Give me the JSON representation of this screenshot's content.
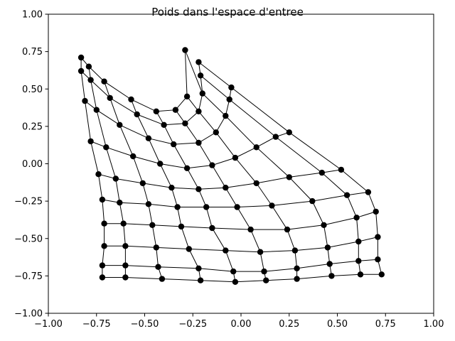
{
  "chart_data": {
    "type": "line",
    "title": "Poids dans l'espace d'entree",
    "xlabel": "",
    "ylabel": "",
    "xlim": [
      -1.0,
      1.0
    ],
    "ylim": [
      -1.0,
      1.0
    ],
    "xticks": [
      -1.0,
      -0.75,
      -0.5,
      -0.25,
      0.0,
      0.25,
      0.5,
      0.75,
      1.0
    ],
    "yticks": [
      -1.0,
      -0.75,
      -0.5,
      -0.25,
      0.0,
      0.25,
      0.5,
      0.75,
      1.0
    ],
    "xtick_labels": [
      "−1.00",
      "−0.75",
      "−0.50",
      "−0.25",
      "0.00",
      "0.25",
      "0.50",
      "0.75",
      "1.00"
    ],
    "ytick_labels": [
      "−1.00",
      "−0.75",
      "−0.50",
      "−0.25",
      "0.00",
      "0.25",
      "0.50",
      "0.75",
      "1.00"
    ],
    "grid": false,
    "legend": "none",
    "line_color": "#000000",
    "marker_color": "#000000",
    "grid_points": [
      [
        [
          -0.83,
          0.71
        ],
        [
          -0.79,
          0.65
        ],
        [
          -0.71,
          0.55
        ],
        [
          -0.57,
          0.43
        ],
        [
          -0.44,
          0.35
        ],
        [
          -0.34,
          0.36
        ],
        [
          -0.28,
          0.45
        ],
        [
          -0.29,
          0.76
        ]
      ],
      [
        [
          -0.83,
          0.62
        ],
        [
          -0.78,
          0.56
        ],
        [
          -0.68,
          0.44
        ],
        [
          -0.54,
          0.33
        ],
        [
          -0.4,
          0.26
        ],
        [
          -0.29,
          0.27
        ],
        [
          -0.22,
          0.35
        ],
        [
          -0.2,
          0.47
        ],
        [
          -0.21,
          0.59
        ],
        [
          -0.22,
          0.68
        ]
      ],
      [
        [
          -0.81,
          0.42
        ],
        [
          -0.75,
          0.36
        ],
        [
          -0.63,
          0.26
        ],
        [
          -0.48,
          0.17
        ],
        [
          -0.35,
          0.13
        ],
        [
          -0.22,
          0.14
        ],
        [
          -0.13,
          0.21
        ],
        [
          -0.08,
          0.32
        ],
        [
          -0.06,
          0.43
        ],
        [
          -0.05,
          0.51
        ]
      ],
      [
        [
          -0.78,
          0.15
        ],
        [
          -0.7,
          0.11
        ],
        [
          -0.56,
          0.05
        ],
        [
          -0.42,
          0.0
        ],
        [
          -0.28,
          -0.03
        ],
        [
          -0.15,
          -0.01
        ],
        [
          -0.03,
          0.04
        ],
        [
          0.08,
          0.11
        ],
        [
          0.18,
          0.18
        ],
        [
          0.25,
          0.21
        ]
      ],
      [
        [
          -0.74,
          -0.07
        ],
        [
          -0.65,
          -0.1
        ],
        [
          -0.51,
          -0.13
        ],
        [
          -0.36,
          -0.16
        ],
        [
          -0.22,
          -0.17
        ],
        [
          -0.08,
          -0.16
        ],
        [
          0.08,
          -0.13
        ],
        [
          0.25,
          -0.09
        ],
        [
          0.42,
          -0.06
        ],
        [
          0.52,
          -0.04
        ]
      ],
      [
        [
          -0.72,
          -0.24
        ],
        [
          -0.63,
          -0.26
        ],
        [
          -0.48,
          -0.27
        ],
        [
          -0.33,
          -0.29
        ],
        [
          -0.18,
          -0.29
        ],
        [
          -0.02,
          -0.29
        ],
        [
          0.16,
          -0.28
        ],
        [
          0.37,
          -0.25
        ],
        [
          0.55,
          -0.21
        ],
        [
          0.66,
          -0.19
        ]
      ],
      [
        [
          -0.71,
          -0.4
        ],
        [
          -0.61,
          -0.4
        ],
        [
          -0.46,
          -0.41
        ],
        [
          -0.31,
          -0.42
        ],
        [
          -0.15,
          -0.43
        ],
        [
          0.05,
          -0.44
        ],
        [
          0.24,
          -0.44
        ],
        [
          0.43,
          -0.41
        ],
        [
          0.6,
          -0.36
        ],
        [
          0.7,
          -0.32
        ]
      ],
      [
        [
          -0.71,
          -0.55
        ],
        [
          -0.6,
          -0.55
        ],
        [
          -0.44,
          -0.56
        ],
        [
          -0.27,
          -0.57
        ],
        [
          -0.08,
          -0.58
        ],
        [
          0.1,
          -0.59
        ],
        [
          0.28,
          -0.58
        ],
        [
          0.45,
          -0.56
        ],
        [
          0.61,
          -0.52
        ],
        [
          0.71,
          -0.49
        ]
      ],
      [
        [
          -0.72,
          -0.68
        ],
        [
          -0.6,
          -0.68
        ],
        [
          -0.43,
          -0.69
        ],
        [
          -0.22,
          -0.7
        ],
        [
          -0.04,
          -0.72
        ],
        [
          0.12,
          -0.72
        ],
        [
          0.29,
          -0.7
        ],
        [
          0.46,
          -0.67
        ],
        [
          0.61,
          -0.65
        ],
        [
          0.71,
          -0.64
        ]
      ],
      [
        [
          -0.72,
          -0.76
        ],
        [
          -0.6,
          -0.76
        ],
        [
          -0.41,
          -0.77
        ],
        [
          -0.21,
          -0.78
        ],
        [
          -0.03,
          -0.79
        ],
        [
          0.13,
          -0.78
        ],
        [
          0.29,
          -0.77
        ],
        [
          0.47,
          -0.75
        ],
        [
          0.62,
          -0.74
        ],
        [
          0.73,
          -0.74
        ]
      ]
    ]
  }
}
